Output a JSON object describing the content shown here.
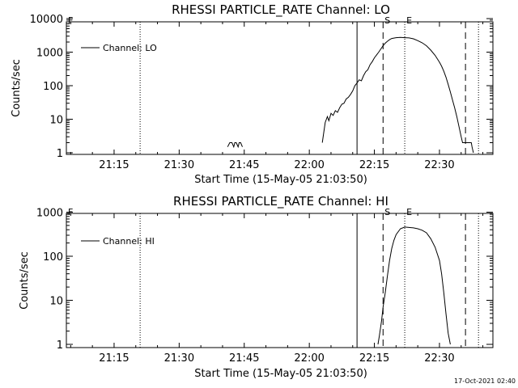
{
  "timestamp": "17-Oct-2021 02:40",
  "colors": {
    "foreground": "#000000",
    "background": "#ffffff"
  },
  "chart_data": [
    {
      "type": "line",
      "title": "RHESSI PARTICLE_RATE Channel: LO",
      "xlabel": "Start Time (15-May-05 21:03:50)",
      "ylabel": "Counts/sec",
      "legend": {
        "label": "Channel: LO",
        "placement": "top-left"
      },
      "y_scale": "log",
      "xlim": [
        "21:04",
        "22:43"
      ],
      "ylim": [
        1,
        12000
      ],
      "x_tick_labels": [
        "21:15",
        "21:30",
        "21:45",
        "22:00",
        "22:15",
        "22:30"
      ],
      "y_tick_labels": [
        "1",
        "10",
        "100",
        "1000",
        "10000"
      ],
      "y_tick_values": [
        1,
        10,
        100,
        1000,
        10000
      ],
      "markers": [
        {
          "label": "F",
          "time": "21:04",
          "style": "none"
        },
        {
          "label": "",
          "time": "21:21",
          "style": "dotted"
        },
        {
          "label": "",
          "time": "22:11",
          "style": "solid"
        },
        {
          "label": "S",
          "time": "22:17",
          "style": "dashed"
        },
        {
          "label": "E",
          "time": "22:22",
          "style": "dotted"
        },
        {
          "label": "",
          "time": "22:36",
          "style": "dashed"
        },
        {
          "label": "",
          "time": "22:39",
          "style": "dotted"
        }
      ],
      "grid": false,
      "series": [
        {
          "name": "Channel: LO",
          "segments": [
            {
              "points": [
                [
                  "21:41:10",
                  1.5
                ],
                [
                  "21:41:40",
                  2
                ],
                [
                  "21:42:10",
                  2
                ],
                [
                  "21:42:35",
                  1.5
                ],
                [
                  "21:42:50",
                  2
                ],
                [
                  "21:43:10",
                  2
                ],
                [
                  "21:43:35",
                  1.5
                ],
                [
                  "21:43:50",
                  2
                ],
                [
                  "21:44:10",
                  2
                ],
                [
                  "21:44:35",
                  1.5
                ]
              ]
            },
            {
              "points": [
                [
                  "22:03",
                  2
                ],
                [
                  "22:03:40",
                  8
                ],
                [
                  "22:04:10",
                  12
                ],
                [
                  "22:04:30",
                  9
                ],
                [
                  "22:05",
                  15
                ],
                [
                  "22:05:30",
                  13
                ],
                [
                  "22:06",
                  18
                ],
                [
                  "22:06:30",
                  16
                ],
                [
                  "22:07",
                  22
                ],
                [
                  "22:07:30",
                  28
                ],
                [
                  "22:08",
                  30
                ],
                [
                  "22:08:30",
                  40
                ],
                [
                  "22:09",
                  45
                ],
                [
                  "22:09:30",
                  55
                ],
                [
                  "22:10",
                  70
                ],
                [
                  "22:10:30",
                  100
                ],
                [
                  "22:11",
                  120
                ],
                [
                  "22:11:30",
                  150
                ],
                [
                  "22:12",
                  140
                ],
                [
                  "22:12:30",
                  200
                ],
                [
                  "22:13",
                  260
                ],
                [
                  "22:13:30",
                  300
                ],
                [
                  "22:14",
                  420
                ],
                [
                  "22:14:30",
                  520
                ],
                [
                  "22:15",
                  680
                ],
                [
                  "22:15:30",
                  820
                ],
                [
                  "22:16",
                  1000
                ],
                [
                  "22:16:30",
                  1250
                ],
                [
                  "22:17",
                  1550
                ],
                [
                  "22:17:30",
                  1850
                ],
                [
                  "22:18",
                  2100
                ],
                [
                  "22:18:30",
                  2350
                ],
                [
                  "22:19",
                  2550
                ],
                [
                  "22:20",
                  2700
                ],
                [
                  "22:21",
                  2750
                ],
                [
                  "22:22",
                  2700
                ],
                [
                  "22:23",
                  2650
                ],
                [
                  "22:24",
                  2500
                ],
                [
                  "22:25",
                  2200
                ],
                [
                  "22:26",
                  1900
                ],
                [
                  "22:27",
                  1550
                ],
                [
                  "22:28",
                  1150
                ],
                [
                  "22:29",
                  800
                ],
                [
                  "22:30",
                  500
                ],
                [
                  "22:30:30",
                  380
                ],
                [
                  "22:31",
                  270
                ],
                [
                  "22:31:30",
                  180
                ],
                [
                  "22:32",
                  110
                ],
                [
                  "22:32:30",
                  65
                ],
                [
                  "22:33",
                  38
                ],
                [
                  "22:33:30",
                  22
                ],
                [
                  "22:34",
                  12
                ],
                [
                  "22:34:30",
                  6
                ],
                [
                  "22:35",
                  3
                ],
                [
                  "22:35:20",
                  2
                ],
                [
                  "22:37",
                  2
                ],
                [
                  "22:37:20",
                  2
                ],
                [
                  "22:37:30",
                  1.5
                ],
                [
                  "22:37:50",
                  1
                ]
              ]
            }
          ]
        }
      ]
    },
    {
      "type": "line",
      "title": "RHESSI PARTICLE_RATE Channel: HI",
      "xlabel": "Start Time (15-May-05 21:03:50)",
      "ylabel": "Counts/sec",
      "legend": {
        "label": "Channel: HI",
        "placement": "top-left"
      },
      "y_scale": "log",
      "xlim": [
        "21:04",
        "22:43"
      ],
      "ylim": [
        1,
        1200
      ],
      "x_tick_labels": [
        "21:15",
        "21:30",
        "21:45",
        "22:00",
        "22:15",
        "22:30"
      ],
      "y_tick_labels": [
        "1",
        "10",
        "100",
        "1000"
      ],
      "y_tick_values": [
        1,
        10,
        100,
        1000
      ],
      "markers": [
        {
          "label": "F",
          "time": "21:04",
          "style": "none"
        },
        {
          "label": "",
          "time": "21:21",
          "style": "dotted"
        },
        {
          "label": "",
          "time": "22:11",
          "style": "solid"
        },
        {
          "label": "S",
          "time": "22:17",
          "style": "dashed"
        },
        {
          "label": "E",
          "time": "22:22",
          "style": "dotted"
        },
        {
          "label": "",
          "time": "22:36",
          "style": "dashed"
        },
        {
          "label": "",
          "time": "22:39",
          "style": "dotted"
        }
      ],
      "grid": false,
      "series": [
        {
          "name": "Channel: HI",
          "segments": [
            {
              "points": [
                [
                  "22:15:50",
                  1
                ],
                [
                  "22:16:10",
                  1.6
                ],
                [
                  "22:16:40",
                  3.5
                ],
                [
                  "22:17",
                  7
                ],
                [
                  "22:17:30",
                  15
                ],
                [
                  "22:18",
                  35
                ],
                [
                  "22:18:30",
                  80
                ],
                [
                  "22:19",
                  150
                ],
                [
                  "22:19:30",
                  230
                ],
                [
                  "22:20",
                  310
                ],
                [
                  "22:21",
                  420
                ],
                [
                  "22:22",
                  460
                ],
                [
                  "22:23",
                  450
                ],
                [
                  "22:24",
                  440
                ],
                [
                  "22:25",
                  420
                ],
                [
                  "22:26",
                  390
                ],
                [
                  "22:27",
                  340
                ],
                [
                  "22:28",
                  250
                ],
                [
                  "22:29",
                  160
                ],
                [
                  "22:30",
                  80
                ],
                [
                  "22:30:30",
                  40
                ],
                [
                  "22:31",
                  15
                ],
                [
                  "22:31:30",
                  5
                ],
                [
                  "22:32",
                  1.8
                ],
                [
                  "22:32:30",
                  1
                ]
              ]
            }
          ]
        }
      ]
    }
  ]
}
